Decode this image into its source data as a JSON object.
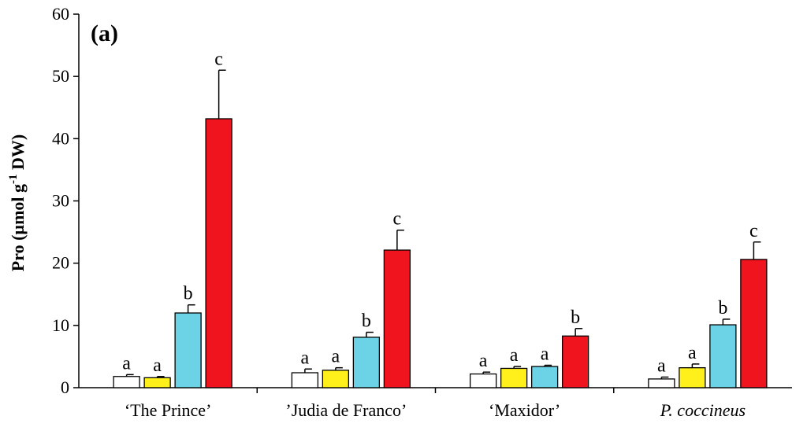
{
  "chart_data": {
    "type": "bar",
    "panel_label": "(a)",
    "ylabel": "Pro (µmol g-1 DW)",
    "ylabel_parts": {
      "pre": "Pro (µmol g",
      "sup": "-1",
      "post": " DW)"
    },
    "ylim": [
      0,
      60
    ],
    "yticks": [
      "0",
      "10",
      "20",
      "30",
      "40",
      "50",
      "60"
    ],
    "grid": false,
    "categories": [
      "‘The Prince’",
      "’Judia de Franco’",
      "‘Maxidor’",
      "P. coccineus"
    ],
    "category_italic": [
      false,
      false,
      false,
      true
    ],
    "series": [
      {
        "color": "#ffffff",
        "values": [
          1.8,
          2.4,
          2.2,
          1.4
        ],
        "errors": [
          0.3,
          0.6,
          0.3,
          0.3
        ],
        "letters": [
          "a",
          "a",
          "a",
          "a"
        ]
      },
      {
        "color": "#ffef1a",
        "values": [
          1.6,
          2.8,
          3.1,
          3.2
        ],
        "errors": [
          0.2,
          0.4,
          0.3,
          0.6
        ],
        "letters": [
          "a",
          "a",
          "a",
          "a"
        ]
      },
      {
        "color": "#6cd3e6",
        "values": [
          12.0,
          8.1,
          3.4,
          10.1
        ],
        "errors": [
          1.3,
          0.8,
          0.2,
          0.9
        ],
        "letters": [
          "b",
          "b",
          "a",
          "b"
        ]
      },
      {
        "color": "#f0141e",
        "values": [
          43.2,
          22.1,
          8.3,
          20.6
        ],
        "errors": [
          7.8,
          3.2,
          1.2,
          2.8
        ],
        "letters": [
          "c",
          "c",
          "b",
          "c"
        ]
      }
    ]
  }
}
